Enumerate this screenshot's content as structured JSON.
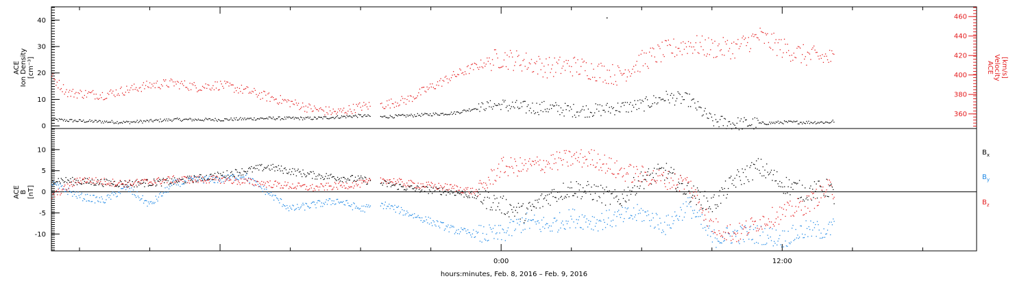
{
  "colors": {
    "black": "#000000",
    "red": "#e41a1c",
    "blue": "#1e88e5",
    "frame": "#000000"
  },
  "x_axis": {
    "label": "hours:minutes, Feb.  8, 2016 – Feb.  9, 2016",
    "tick_labels": [
      "0:00",
      "12:00"
    ]
  },
  "chart_data": [
    {
      "type": "scatter",
      "panel": "top",
      "left_ylabel": [
        "ACE",
        "Ion Density",
        "[cm⁻³]"
      ],
      "right_ylabel": [
        "ACE",
        "Velocity",
        "[km/s]"
      ],
      "x_units": "hours relative to 2016-02-09 00:00",
      "xlim": [
        -19.2,
        20.3
      ],
      "ylim_left": [
        -1,
        45
      ],
      "yticks_left": [
        "0",
        "10",
        "20",
        "30",
        "40"
      ],
      "ylim_right": [
        345,
        470
      ],
      "yticks_right": [
        "360",
        "380",
        "400",
        "420",
        "440",
        "460"
      ],
      "grid": false,
      "series": [
        {
          "axis": "left",
          "color": "black",
          "x": [
            -19.2,
            -18,
            -16,
            -14,
            -12,
            -10,
            -8,
            -6,
            -5.2,
            -4,
            -2,
            -0.5,
            0,
            1,
            2,
            3,
            4,
            5,
            6,
            7,
            8,
            9,
            10,
            11,
            12,
            13,
            14,
            14.2
          ],
          "values": [
            2.5,
            2,
            1.5,
            2.5,
            2.5,
            3,
            3,
            4,
            3.5,
            4,
            5,
            8,
            8,
            7,
            7,
            6,
            6,
            7,
            8,
            11,
            10,
            2,
            1,
            1,
            1.5,
            1.5,
            1.5,
            2
          ],
          "gaps": [
            [
              -5.6,
              -5.2
            ],
            [
              14.3,
              20.3
            ]
          ],
          "outliers": [
            [
              4.5,
              41
            ]
          ]
        },
        {
          "axis": "right",
          "color": "red",
          "x": [
            -19.2,
            -18.5,
            -17,
            -16,
            -15,
            -14,
            -13,
            -12,
            -11,
            -10,
            -9,
            -8,
            -7,
            -6,
            -5,
            -4,
            -3,
            -2,
            -1,
            -0.5,
            0,
            1,
            2,
            3,
            4,
            5,
            6,
            7,
            8,
            9,
            10,
            11,
            12,
            13,
            14,
            14.2
          ],
          "values": [
            398,
            382,
            380,
            385,
            390,
            392,
            388,
            390,
            385,
            378,
            372,
            365,
            362,
            368,
            370,
            375,
            388,
            400,
            410,
            415,
            418,
            414,
            408,
            410,
            405,
            400,
            415,
            425,
            432,
            428,
            428,
            440,
            428,
            420,
            418,
            415
          ],
          "gaps": [
            [
              -5.6,
              -5.2
            ],
            [
              14.3,
              20.3
            ]
          ]
        }
      ]
    },
    {
      "type": "scatter",
      "panel": "bottom",
      "left_ylabel": [
        "ACE",
        "B",
        "[nT]"
      ],
      "xlim": [
        -19.2,
        20.3
      ],
      "ylim": [
        -14,
        15
      ],
      "yticks": [
        "-10",
        "-5",
        "0",
        "5",
        "10"
      ],
      "zero_line": true,
      "grid": false,
      "legend_position": "right",
      "series": [
        {
          "name": "Bx",
          "color": "black",
          "x": [
            -19.2,
            -18,
            -16,
            -14,
            -12,
            -10,
            -8,
            -6,
            -5,
            -4,
            -2,
            -1,
            0,
            1,
            2,
            3,
            4,
            5,
            6,
            7,
            8,
            9,
            10,
            11,
            12,
            13,
            14,
            14.2
          ],
          "values": [
            3,
            2.5,
            2,
            2.5,
            4,
            6,
            4,
            3,
            2,
            1,
            0,
            -1,
            -3,
            -5,
            -1,
            1,
            0,
            -2,
            3,
            5,
            0,
            -3,
            3,
            6,
            2,
            0,
            1,
            -1
          ],
          "gaps": [
            [
              -5.6,
              -5.2
            ],
            [
              14.3,
              20.3
            ]
          ]
        },
        {
          "name": "By",
          "color": "blue",
          "x": [
            -19.2,
            -18,
            -17,
            -16,
            -15,
            -14,
            -13,
            -12,
            -11,
            -10,
            -9,
            -8,
            -7,
            -6,
            -5,
            -4,
            -3,
            -2,
            -1,
            0,
            1,
            2,
            3,
            4,
            5,
            6,
            7,
            8,
            9,
            10,
            11,
            12,
            13,
            14,
            14.2
          ],
          "values": [
            2,
            -1,
            -2,
            1,
            -3,
            2,
            3,
            3,
            4,
            0,
            -4,
            -3,
            -2,
            -4,
            -3,
            -5,
            -7,
            -9,
            -10,
            -10,
            -7,
            -8,
            -6,
            -7,
            -6,
            -5,
            -8,
            -3,
            -11,
            -10,
            -10,
            -11,
            -9,
            -9,
            -8
          ],
          "gaps": [
            [
              -5.6,
              -5.2
            ],
            [
              14.3,
              20.3
            ]
          ]
        },
        {
          "name": "Bz",
          "color": "red",
          "x": [
            -19.2,
            -18,
            -16,
            -14,
            -12,
            -10,
            -8,
            -6,
            -5,
            -4,
            -2,
            -1,
            0,
            1,
            2,
            3,
            4,
            5,
            6,
            7,
            8,
            9,
            10,
            11,
            12,
            13,
            14,
            14.2
          ],
          "values": [
            -1,
            3,
            2,
            3,
            3,
            2,
            1,
            2,
            3,
            2,
            1,
            0,
            6,
            6,
            7,
            8,
            8,
            5,
            4,
            3,
            2,
            -8,
            -10,
            -7,
            -5,
            -3,
            1,
            0
          ],
          "gaps": [
            [
              -5.6,
              -5.2
            ],
            [
              14.3,
              20.3
            ]
          ]
        }
      ]
    }
  ]
}
